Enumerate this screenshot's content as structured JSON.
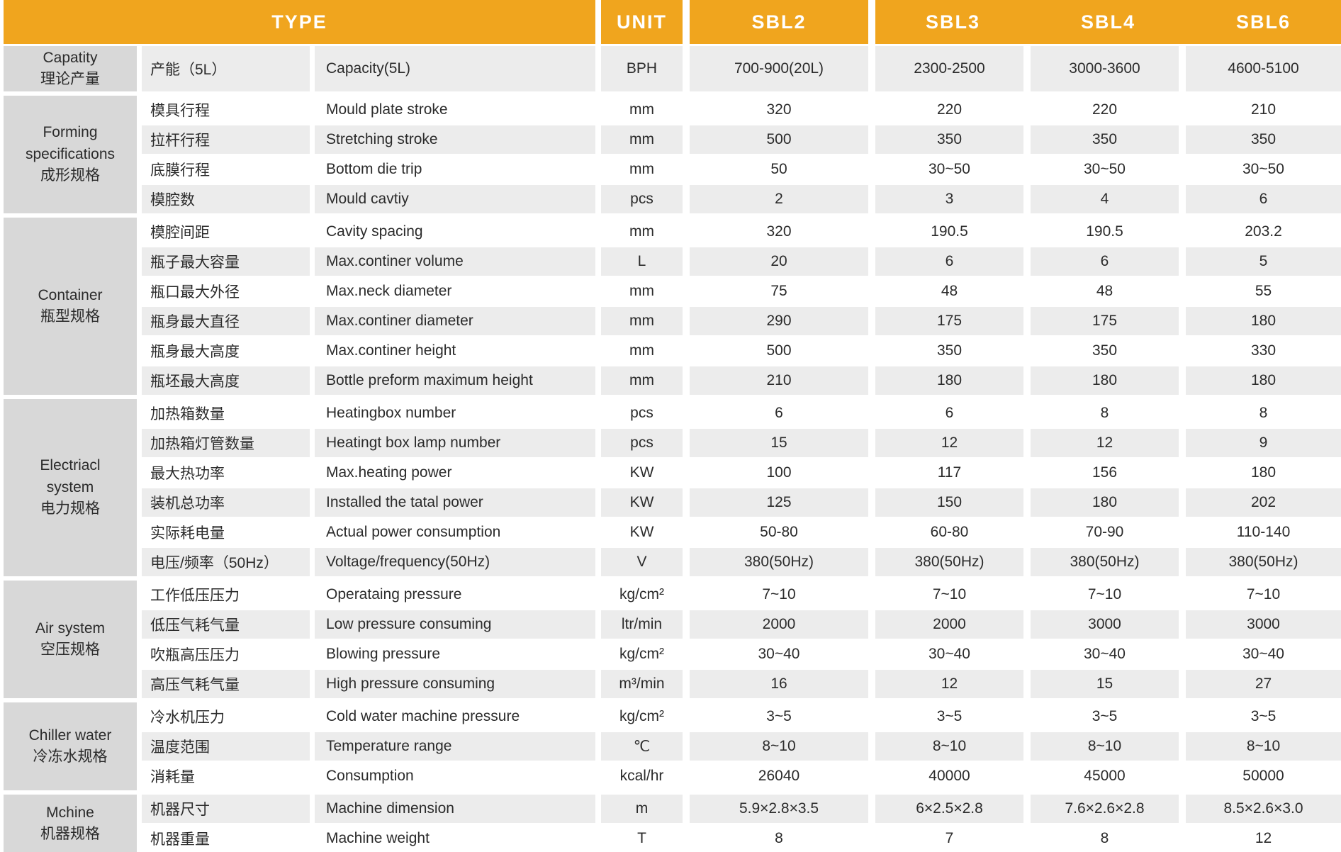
{
  "header": {
    "type": "TYPE",
    "unit": "UNIT",
    "models": [
      "SBL2",
      "SBL3",
      "SBL4",
      "SBL6"
    ]
  },
  "colors": {
    "header_bg": "#F0A51E",
    "header_text": "#FFFFFF",
    "group_label_bg": "#D8D8D8",
    "row_stripe_bg": "#ECECEC",
    "body_text": "#2B2B2B"
  },
  "groups": [
    {
      "label_en": "Capatity",
      "label_cn": "理论产量",
      "rows": [
        {
          "cn": "产能（5L）",
          "en": "Capacity(5L)",
          "unit": "BPH",
          "values": [
            "700-900(20L)",
            "2300-2500",
            "3000-3600",
            "4600-5100"
          ],
          "tall": true
        }
      ]
    },
    {
      "label_en": "Forming specifications",
      "label_cn": "成形规格",
      "rows": [
        {
          "cn": "模具行程",
          "en": "Mould plate stroke",
          "unit": "mm",
          "values": [
            "320",
            "220",
            "220",
            "210"
          ]
        },
        {
          "cn": "拉杆行程",
          "en": "Stretching stroke",
          "unit": "mm",
          "values": [
            "500",
            "350",
            "350",
            "350"
          ]
        },
        {
          "cn": "底膜行程",
          "en": "Bottom die trip",
          "unit": "mm",
          "values": [
            "50",
            "30~50",
            "30~50",
            "30~50"
          ]
        },
        {
          "cn": "模腔数",
          "en": "Mould cavtiy",
          "unit": "pcs",
          "values": [
            "2",
            "3",
            "4",
            "6"
          ]
        }
      ]
    },
    {
      "label_en": "Container",
      "label_cn": "瓶型规格",
      "rows": [
        {
          "cn": "模腔间距",
          "en": "Cavity spacing",
          "unit": "mm",
          "values": [
            "320",
            "190.5",
            "190.5",
            "203.2"
          ]
        },
        {
          "cn": "瓶子最大容量",
          "en": "Max.continer volume",
          "unit": "L",
          "values": [
            "20",
            "6",
            "6",
            "5"
          ]
        },
        {
          "cn": "瓶口最大外径",
          "en": "Max.neck diameter",
          "unit": "mm",
          "values": [
            "75",
            "48",
            "48",
            "55"
          ]
        },
        {
          "cn": "瓶身最大直径",
          "en": "Max.continer diameter",
          "unit": "mm",
          "values": [
            "290",
            "175",
            "175",
            "180"
          ]
        },
        {
          "cn": "瓶身最大高度",
          "en": "Max.continer height",
          "unit": "mm",
          "values": [
            "500",
            "350",
            "350",
            "330"
          ]
        },
        {
          "cn": "瓶坯最大高度",
          "en": "Bottle preform maximum height",
          "unit": "mm",
          "values": [
            "210",
            "180",
            "180",
            "180"
          ]
        }
      ]
    },
    {
      "label_en": "Electriacl system",
      "label_cn": "电力规格",
      "rows": [
        {
          "cn": "加热箱数量",
          "en": "Heatingbox number",
          "unit": "pcs",
          "values": [
            "6",
            "6",
            "8",
            "8"
          ]
        },
        {
          "cn": "加热箱灯管数量",
          "en": "Heatingt box lamp number",
          "unit": "pcs",
          "values": [
            "15",
            "12",
            "12",
            "9"
          ]
        },
        {
          "cn": "最大热功率",
          "en": "Max.heating power",
          "unit": "KW",
          "values": [
            "100",
            "117",
            "156",
            "180"
          ]
        },
        {
          "cn": "装机总功率",
          "en": "Installed the tatal power",
          "unit": "KW",
          "values": [
            "125",
            "150",
            "180",
            "202"
          ]
        },
        {
          "cn": "实际耗电量",
          "en": "Actual power consumption",
          "unit": "KW",
          "values": [
            "50-80",
            "60-80",
            "70-90",
            "110-140"
          ]
        },
        {
          "cn": "电压/频率（50Hz）",
          "en": "Voltage/frequency(50Hz)",
          "unit": "V",
          "values": [
            "380(50Hz)",
            "380(50Hz)",
            "380(50Hz)",
            "380(50Hz)"
          ]
        }
      ]
    },
    {
      "label_en": "Air system",
      "label_cn": "空压规格",
      "rows": [
        {
          "cn": "工作低压压力",
          "en": "Operataing pressure",
          "unit": "kg/cm²",
          "values": [
            "7~10",
            "7~10",
            "7~10",
            "7~10"
          ]
        },
        {
          "cn": "低压气耗气量",
          "en": "Low pressure consuming",
          "unit": "ltr/min",
          "values": [
            "2000",
            "2000",
            "3000",
            "3000"
          ]
        },
        {
          "cn": "吹瓶高压压力",
          "en": "Blowing pressure",
          "unit": "kg/cm²",
          "values": [
            "30~40",
            "30~40",
            "30~40",
            "30~40"
          ]
        },
        {
          "cn": "高压气耗气量",
          "en": "High pressure consuming",
          "unit": "m³/min",
          "values": [
            "16",
            "12",
            "15",
            "27"
          ]
        }
      ]
    },
    {
      "label_en": "Chiller water",
      "label_cn": "冷冻水规格",
      "rows": [
        {
          "cn": "冷水机压力",
          "en": "Cold water machine pressure",
          "unit": "kg/cm²",
          "values": [
            "3~5",
            "3~5",
            "3~5",
            "3~5"
          ]
        },
        {
          "cn": "温度范围",
          "en": "Temperature range",
          "unit": "℃",
          "values": [
            "8~10",
            "8~10",
            "8~10",
            "8~10"
          ]
        },
        {
          "cn": "消耗量",
          "en": "Consumption",
          "unit": "kcal/hr",
          "values": [
            "26040",
            "40000",
            "45000",
            "50000"
          ]
        }
      ]
    },
    {
      "label_en": "Mchine",
      "label_cn": "机器规格",
      "rows": [
        {
          "cn": "机器尺寸",
          "en": "Machine dimension",
          "unit": "m",
          "values": [
            "5.9×2.8×3.5",
            "6×2.5×2.8",
            "7.6×2.6×2.8",
            "8.5×2.6×3.0"
          ]
        },
        {
          "cn": "机器重量",
          "en": "Machine weight",
          "unit": "T",
          "values": [
            "8",
            "7",
            "8",
            "12"
          ]
        }
      ]
    }
  ]
}
